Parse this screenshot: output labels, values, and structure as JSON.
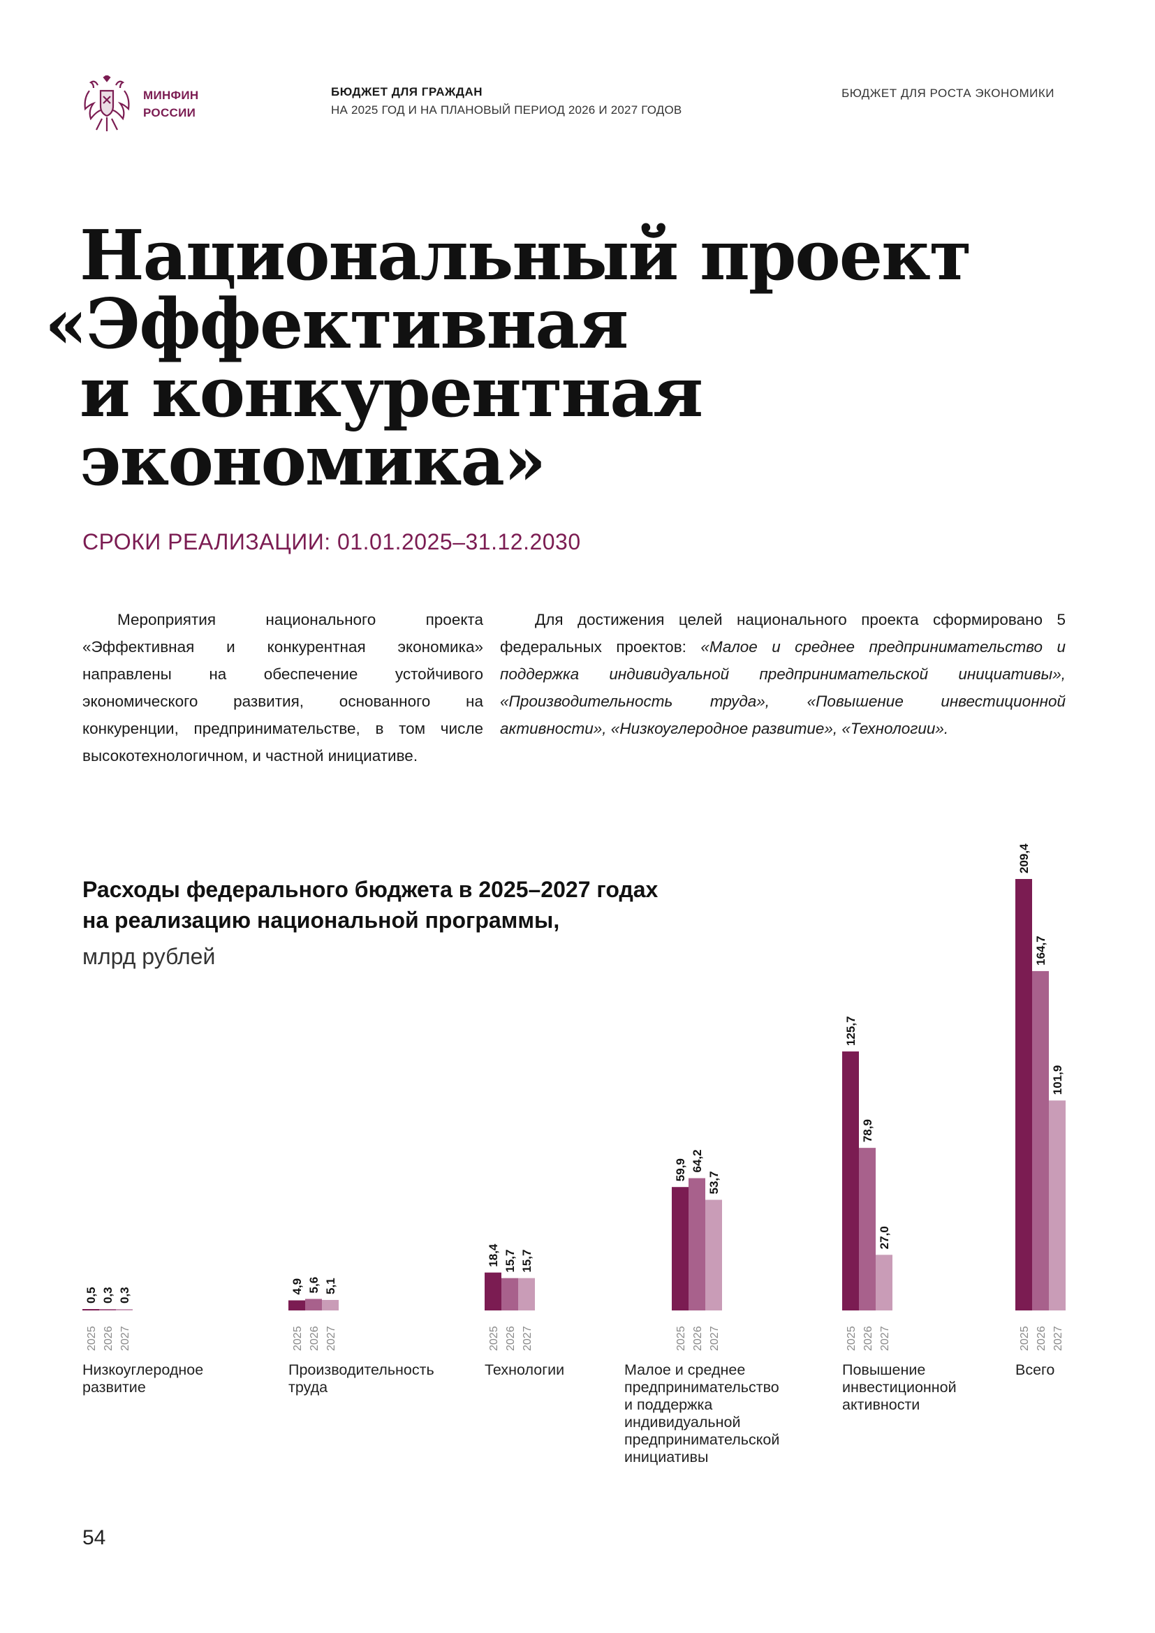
{
  "header": {
    "brand_line1": "МИНФИН",
    "brand_line2": "РОССИИ",
    "title": "БЮДЖЕТ ДЛЯ ГРАЖДАН",
    "subtitle": "НА 2025 ГОД И НА ПЛАНОВЫЙ ПЕРИОД 2026 И 2027 ГОДОВ",
    "section": "БЮДЖЕТ ДЛЯ РОСТА ЭКОНОМИКИ"
  },
  "title_lines": [
    "Национальный проект",
    "«Эффективная",
    "и конкурентная",
    "экономика»"
  ],
  "period": "СРОКИ РЕАЛИЗАЦИИ: 01.01.2025–31.12.2030",
  "intro_left": "Мероприятия национального проекта «Эффективная и конкурентная экономика» направлены на обеспечение устойчивого экономического развития, основанного на конкуренции, предпринимательстве, в том числе высокотехнологичном, и частной инициативе.",
  "intro_right_plain": "Для достижения целей национального проекта сформировано 5 федеральных проектов: ",
  "intro_right_italic": "«Малое и среднее предпринимательство и поддержка индивидуальной предпринимательской инициативы», «Производительность труда», «Повышение инвестиционной активности», «Низкоуглеродное развитие», «Технологии».",
  "chart_heading_line1": "Расходы федерального бюджета в 2025–2027 годах",
  "chart_heading_line2": "на реализацию национальной программы,",
  "chart_unit": "млрд рублей",
  "page_number": "54",
  "colors": {
    "accent": "#7b1c52",
    "y2025": "#7b1c52",
    "y2026": "#a8618c",
    "y2027": "#c99cb7"
  },
  "chart_data": {
    "type": "bar",
    "categories": [
      "Низкоуглеродное развитие",
      "Производительность труда",
      "Технологии",
      "Малое и среднее предпринимательство и поддержка индивидуальной предпринимательской инициативы",
      "Повышение инвестиционной активности",
      "Всего"
    ],
    "category_label_lines": [
      [
        "Низкоуглеродное",
        "развитие"
      ],
      [
        "Производительность",
        "труда"
      ],
      [
        "Технологии"
      ],
      [
        "Малое и среднее",
        "предпринимательство",
        "и поддержка",
        "индивидуальной",
        "предпринимательской",
        "инициативы"
      ],
      [
        "Повышение",
        "инвестиционной",
        "активности"
      ],
      [
        "Всего"
      ]
    ],
    "series": [
      {
        "name": "2025",
        "values": [
          0.5,
          4.9,
          18.4,
          59.9,
          125.7,
          209.4
        ],
        "labels": [
          "0,5",
          "4,9",
          "18,4",
          "59,9",
          "125,7",
          "209,4"
        ]
      },
      {
        "name": "2026",
        "values": [
          0.3,
          5.6,
          15.7,
          64.2,
          78.9,
          164.7
        ],
        "labels": [
          "0,3",
          "5,6",
          "15,7",
          "64,2",
          "78,9",
          "164,7"
        ]
      },
      {
        "name": "2027",
        "values": [
          0.3,
          5.1,
          15.7,
          53.7,
          27.0,
          101.9
        ],
        "labels": [
          "0,3",
          "5,1",
          "15,7",
          "53,7",
          "27,0",
          "101,9"
        ]
      }
    ],
    "ylim": [
      0,
      209.4
    ]
  }
}
